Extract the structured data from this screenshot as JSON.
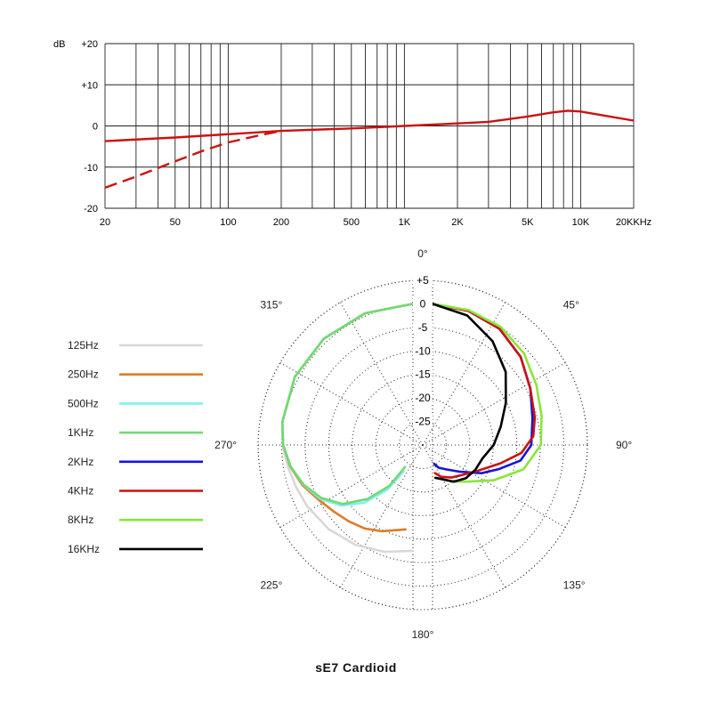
{
  "caption": "sE7  Cardioid",
  "chart_data": [
    {
      "type": "line",
      "scale": "log-x",
      "y_unit_label": "dB",
      "x_unit_label": "KHz",
      "xlim": [
        20,
        20000
      ],
      "ylim": [
        -20,
        20
      ],
      "x_tick_labels": [
        {
          "value": 20,
          "label": "20"
        },
        {
          "value": 50,
          "label": "50"
        },
        {
          "value": 100,
          "label": "100"
        },
        {
          "value": 200,
          "label": "200"
        },
        {
          "value": 500,
          "label": "500"
        },
        {
          "value": 1000,
          "label": "1K"
        },
        {
          "value": 2000,
          "label": "2K"
        },
        {
          "value": 5000,
          "label": "5K"
        },
        {
          "value": 10000,
          "label": "10K"
        },
        {
          "value": 20000,
          "label": "20K"
        }
      ],
      "y_tick_labels": [
        {
          "value": 20,
          "label": "+20"
        },
        {
          "value": 10,
          "label": "+10"
        },
        {
          "value": 0,
          "label": "0"
        },
        {
          "value": -10,
          "label": "-10"
        },
        {
          "value": -20,
          "label": "-20"
        }
      ],
      "vertical_grid": [
        20,
        30,
        40,
        50,
        60,
        70,
        80,
        90,
        100,
        200,
        300,
        400,
        500,
        600,
        700,
        800,
        900,
        1000,
        2000,
        3000,
        4000,
        5000,
        6000,
        7000,
        8000,
        9000,
        10000,
        20000
      ],
      "horizontal_grid": [
        -20,
        -10,
        0,
        10,
        20
      ],
      "color": "#cc1111",
      "series": [
        {
          "style": "solid",
          "x": [
            20,
            50,
            100,
            200,
            500,
            1000,
            2000,
            3000,
            5000,
            7000,
            8500,
            10000,
            15000,
            20000
          ],
          "y": [
            -3.7,
            -2.8,
            -2.0,
            -1.2,
            -0.6,
            0.0,
            0.6,
            1.0,
            2.3,
            3.3,
            3.7,
            3.5,
            2.2,
            1.3
          ]
        },
        {
          "style": "dashed",
          "x": [
            20,
            30,
            50,
            70,
            100,
            150,
            200
          ],
          "y": [
            -15.0,
            -12.3,
            -8.6,
            -6.2,
            -4.0,
            -2.3,
            -1.2
          ]
        }
      ]
    },
    {
      "type": "polar",
      "r_range_db": [
        -30,
        5
      ],
      "r_tick_labels": [
        "+5",
        "0",
        "-5",
        "-10",
        "-15",
        "-20",
        "-25"
      ],
      "r_tick_values": [
        5,
        0,
        -5,
        -10,
        -15,
        -20,
        -25
      ],
      "angle_labels": [
        {
          "deg": 0,
          "label": "0°"
        },
        {
          "deg": 45,
          "label": "45°"
        },
        {
          "deg": 90,
          "label": "90°"
        },
        {
          "deg": 135,
          "label": "135°"
        },
        {
          "deg": 180,
          "label": "180°"
        },
        {
          "deg": 225,
          "label": "225°"
        },
        {
          "deg": 270,
          "label": "270°"
        },
        {
          "deg": 315,
          "label": "315°"
        }
      ],
      "series": [
        {
          "name": "125Hz",
          "color": "#d8d8d8",
          "side": "left",
          "points": [
            [
              0,
              0
            ],
            [
              20,
              -0.2
            ],
            [
              40,
              -0.5
            ],
            [
              60,
              -1.0
            ],
            [
              80,
              -1.8
            ],
            [
              90,
              -2.3
            ],
            [
              100,
              -3.0
            ],
            [
              110,
              -3.6
            ],
            [
              120,
              -4.0
            ],
            [
              135,
              -4.7
            ],
            [
              150,
              -5.5
            ],
            [
              165,
              -6.5
            ],
            [
              180,
              -7.5
            ]
          ]
        },
        {
          "name": "250Hz",
          "color": "#e07b2a",
          "side": "left",
          "points": [
            [
              0,
              0
            ],
            [
              20,
              -0.2
            ],
            [
              40,
              -0.5
            ],
            [
              60,
              -1.0
            ],
            [
              80,
              -1.8
            ],
            [
              90,
              -2.4
            ],
            [
              100,
              -3.5
            ],
            [
              110,
              -5.0
            ],
            [
              120,
              -6.8
            ],
            [
              130,
              -8.0
            ],
            [
              140,
              -8.8
            ],
            [
              150,
              -9.5
            ],
            [
              160,
              -10.5
            ],
            [
              175,
              -12.0
            ]
          ]
        },
        {
          "name": "500Hz",
          "color": "#7ff0f0",
          "side": "left",
          "points": [
            [
              0,
              0
            ],
            [
              20,
              -0.2
            ],
            [
              40,
              -0.5
            ],
            [
              60,
              -1.0
            ],
            [
              80,
              -1.8
            ],
            [
              90,
              -2.4
            ],
            [
              100,
              -3.6
            ],
            [
              110,
              -5.2
            ],
            [
              120,
              -7.2
            ],
            [
              130,
              -10.0
            ],
            [
              140,
              -14.0
            ],
            [
              150,
              -19.0
            ],
            [
              160,
              -24.0
            ]
          ]
        },
        {
          "name": "1KHz",
          "color": "#72d972",
          "side": "left",
          "points": [
            [
              0,
              0
            ],
            [
              20,
              -0.2
            ],
            [
              40,
              -0.5
            ],
            [
              60,
              -1.0
            ],
            [
              80,
              -1.8
            ],
            [
              90,
              -2.4
            ],
            [
              100,
              -3.6
            ],
            [
              110,
              -5.3
            ],
            [
              120,
              -7.5
            ],
            [
              130,
              -10.5
            ],
            [
              140,
              -15.0
            ],
            [
              150,
              -20.0
            ],
            [
              160,
              -25.0
            ]
          ]
        },
        {
          "name": "2KHz",
          "color": "#1515d8",
          "side": "right",
          "points": [
            [
              0,
              0
            ],
            [
              15,
              -0.5
            ],
            [
              30,
              -1.5
            ],
            [
              45,
              -3.5
            ],
            [
              60,
              -6.0
            ],
            [
              75,
              -8.0
            ],
            [
              90,
              -9.0
            ],
            [
              100,
              -11.0
            ],
            [
              110,
              -15.0
            ],
            [
              120,
              -18.0
            ],
            [
              135,
              -22.0
            ],
            [
              150,
              -24.0
            ],
            [
              165,
              -25.0
            ],
            [
              175,
              -26.0
            ]
          ]
        },
        {
          "name": "4KHz",
          "color": "#cc1111",
          "side": "right",
          "points": [
            [
              0,
              0
            ],
            [
              15,
              -0.5
            ],
            [
              30,
              -1.5
            ],
            [
              45,
              -3.5
            ],
            [
              60,
              -6.0
            ],
            [
              75,
              -7.5
            ],
            [
              85,
              -8.5
            ],
            [
              95,
              -11.0
            ],
            [
              105,
              -15.0
            ],
            [
              120,
              -19.0
            ],
            [
              135,
              -21.0
            ],
            [
              150,
              -22.0
            ],
            [
              165,
              -23.0
            ],
            [
              175,
              -24.0
            ]
          ]
        },
        {
          "name": "8KHz",
          "color": "#88e63a",
          "side": "right",
          "points": [
            [
              0,
              0
            ],
            [
              15,
              -0.3
            ],
            [
              30,
              -1.0
            ],
            [
              45,
              -2.5
            ],
            [
              60,
              -4.5
            ],
            [
              75,
              -6.0
            ],
            [
              90,
              -7.0
            ],
            [
              105,
              -10.0
            ],
            [
              120,
              -15.0
            ],
            [
              135,
              -19.0
            ],
            [
              150,
              -21.0
            ],
            [
              165,
              -22.5
            ],
            [
              175,
              -23.0
            ]
          ]
        },
        {
          "name": "16KHz",
          "color": "#000000",
          "side": "right",
          "points": [
            [
              0,
              0
            ],
            [
              15,
              -1.5
            ],
            [
              30,
              -4.5
            ],
            [
              45,
              -8.0
            ],
            [
              60,
              -12.0
            ],
            [
              75,
              -15.0
            ],
            [
              90,
              -17.0
            ],
            [
              105,
              -19.0
            ],
            [
              120,
              -19.5
            ],
            [
              135,
              -20.0
            ],
            [
              150,
              -21.0
            ],
            [
              165,
              -22.5
            ],
            [
              175,
              -23.0
            ]
          ]
        }
      ]
    }
  ]
}
